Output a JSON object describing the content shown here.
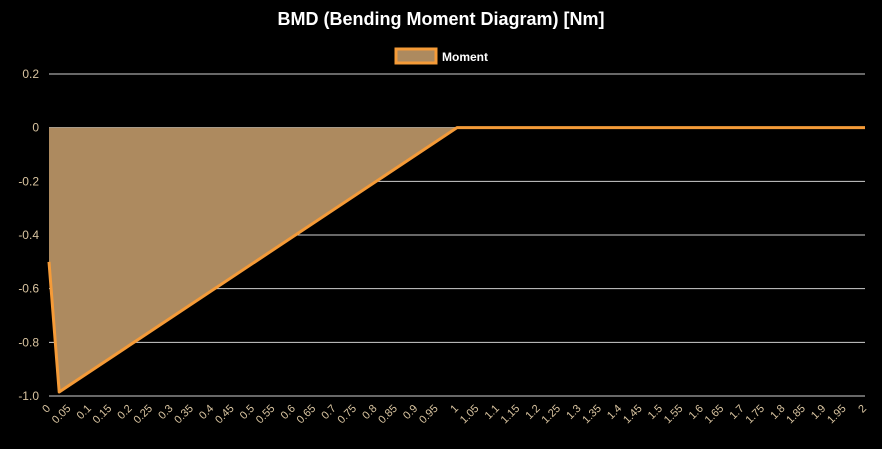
{
  "chart_data": {
    "type": "area",
    "title": "BMD (Bending Moment Diagram) [Nm]",
    "xlabel": "",
    "ylabel": "",
    "grid": true,
    "legend_position": "top-center",
    "xlim": [
      0,
      2
    ],
    "ylim": [
      -1.0,
      0.2
    ],
    "y_ticks": [
      "0.2",
      "0",
      "-0.2",
      "-0.4",
      "-0.6",
      "-0.8",
      "-1.0"
    ],
    "y_tick_values": [
      0.2,
      0,
      -0.2,
      -0.4,
      -0.6,
      -0.8,
      -1.0
    ],
    "x_ticks": [
      "0",
      "0.05",
      "0.1",
      "0.15",
      "0.2",
      "0.25",
      "0.3",
      "0.35",
      "0.4",
      "0.45",
      "0.5",
      "0.55",
      "0.6",
      "0.65",
      "0.7",
      "0.75",
      "0.8",
      "0.85",
      "0.9",
      "0.95",
      "1",
      "1.05",
      "1.1",
      "1.15",
      "1.2",
      "1.25",
      "1.3",
      "1.35",
      "1.4",
      "1.45",
      "1.5",
      "1.55",
      "1.6",
      "1.65",
      "1.7",
      "1.75",
      "1.8",
      "1.85",
      "1.9",
      "1.95",
      "2"
    ],
    "series": [
      {
        "name": "Moment",
        "line_color": "#f59b38",
        "fill_color": "#ad8a5f",
        "x": [
          0,
          0.025,
          1.0,
          1.025,
          2.0
        ],
        "y": [
          -0.5,
          -0.985,
          0,
          0,
          0
        ]
      }
    ]
  }
}
